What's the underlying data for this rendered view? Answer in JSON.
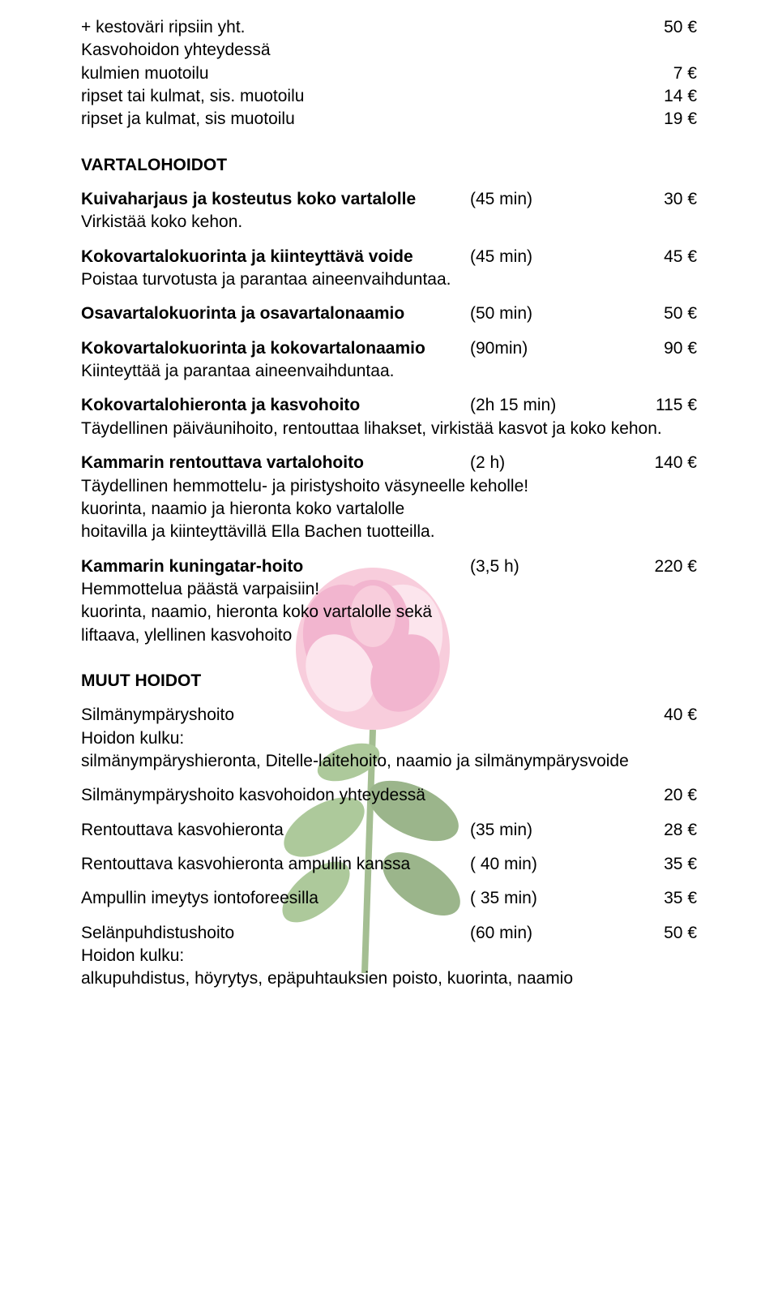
{
  "rose_svg": {
    "petal_color": "#f4a6c0",
    "petal_dark": "#e87aa8",
    "petal_light": "#fbd0e0",
    "leaf_color": "#6b9e4a",
    "leaf_dark": "#4a7a2e",
    "stem_color": "#5a8a3a"
  },
  "items": [
    {
      "type": "row",
      "label": "+ kestoväri ripsiin yht.",
      "duration": "",
      "price": "50 €"
    },
    {
      "type": "text",
      "label": "Kasvohoidon yhteydessä"
    },
    {
      "type": "row",
      "label": "kulmien muotoilu",
      "duration": "",
      "price": "7 €"
    },
    {
      "type": "row",
      "label": "ripset tai kulmat, sis. muotoilu",
      "duration": "",
      "price": "14 €"
    },
    {
      "type": "row",
      "label": "ripset ja kulmat, sis muotoilu",
      "duration": "",
      "price": "19 €"
    },
    {
      "type": "gap"
    },
    {
      "type": "heading",
      "label": "VARTALOHOIDOT"
    },
    {
      "type": "smallgap"
    },
    {
      "type": "row_bold",
      "label": "Kuivaharjaus ja kosteutus koko vartalolle",
      "duration": "(45 min)",
      "price": "30 €"
    },
    {
      "type": "text",
      "label": "Virkistää koko kehon."
    },
    {
      "type": "smallgap"
    },
    {
      "type": "row_bold",
      "label": "Kokovartalokuorinta ja kiinteyttävä voide",
      "duration": "(45 min)",
      "price": "45 €"
    },
    {
      "type": "text",
      "label": "Poistaa turvotusta ja parantaa aineenvaihduntaa."
    },
    {
      "type": "smallgap"
    },
    {
      "type": "row_bold",
      "label": "Osavartalokuorinta ja osavartalonaamio",
      "duration": "(50 min)",
      "price": "50 €"
    },
    {
      "type": "smallgap"
    },
    {
      "type": "row_bold",
      "label": "Kokovartalokuorinta ja kokovartalonaamio",
      "duration": "(90min)",
      "price": "90 €"
    },
    {
      "type": "text",
      "label": "Kiinteyttää ja parantaa aineenvaihduntaa."
    },
    {
      "type": "smallgap"
    },
    {
      "type": "row_bold",
      "label": "Kokovartalohieronta ja kasvohoito",
      "duration": "(2h 15 min)",
      "price": "115 €"
    },
    {
      "type": "text",
      "label": "Täydellinen päiväunihoito, rentouttaa lihakset, virkistää kasvot ja koko kehon."
    },
    {
      "type": "smallgap"
    },
    {
      "type": "row_bold",
      "label": "Kammarin rentouttava vartalohoito",
      "duration": "(2 h)",
      "price": "140 €"
    },
    {
      "type": "text",
      "label": "Täydellinen hemmottelu- ja piristyshoito väsyneelle keholle!"
    },
    {
      "type": "text",
      "label": " kuorinta, naamio ja hieronta koko vartalolle"
    },
    {
      "type": "text",
      "label": "hoitavilla ja kiinteyttävillä Ella Bachen tuotteilla."
    },
    {
      "type": "smallgap"
    },
    {
      "type": "row_bold",
      "label": "Kammarin kuningatar-hoito",
      "duration": "(3,5 h)",
      "price": "220 €"
    },
    {
      "type": "text",
      "label": "Hemmottelua päästä varpaisiin!"
    },
    {
      "type": "text",
      "label": "kuorinta, naamio, hieronta koko vartalolle sekä"
    },
    {
      "type": "text",
      "label": "liftaava, ylellinen kasvohoito"
    },
    {
      "type": "gap"
    },
    {
      "type": "heading",
      "label": "MUUT HOIDOT"
    },
    {
      "type": "smallgap"
    },
    {
      "type": "row",
      "label": "Silmänympäryshoito",
      "duration": "",
      "price": "40 €"
    },
    {
      "type": "text",
      "label": "Hoidon kulku:"
    },
    {
      "type": "text",
      "label": "silmänympäryshieronta, Ditelle-laitehoito, naamio ja silmänympärysvoide"
    },
    {
      "type": "smallgap"
    },
    {
      "type": "row",
      "label": "Silmänympäryshoito kasvohoidon yhteydessä",
      "duration": "",
      "price": "20 €"
    },
    {
      "type": "smallgap"
    },
    {
      "type": "row",
      "label": "Rentouttava kasvohieronta",
      "duration": "(35 min)",
      "price": "28 €"
    },
    {
      "type": "smallgap"
    },
    {
      "type": "row",
      "label": "Rentouttava kasvohieronta ampullin kanssa",
      "duration": "( 40 min)",
      "price": "35 €"
    },
    {
      "type": "smallgap"
    },
    {
      "type": "row",
      "label": "Ampullin imeytys iontoforeesilla",
      "duration": "( 35 min)",
      "price": "35 €"
    },
    {
      "type": "smallgap"
    },
    {
      "type": "row",
      "label": "Selänpuhdistushoito",
      "duration": "(60 min)",
      "price": "50 €"
    },
    {
      "type": "text",
      "label": "Hoidon kulku:"
    },
    {
      "type": "text",
      "label": "alkupuhdistus, höyrytys, epäpuhtauksien poisto, kuorinta, naamio"
    }
  ]
}
